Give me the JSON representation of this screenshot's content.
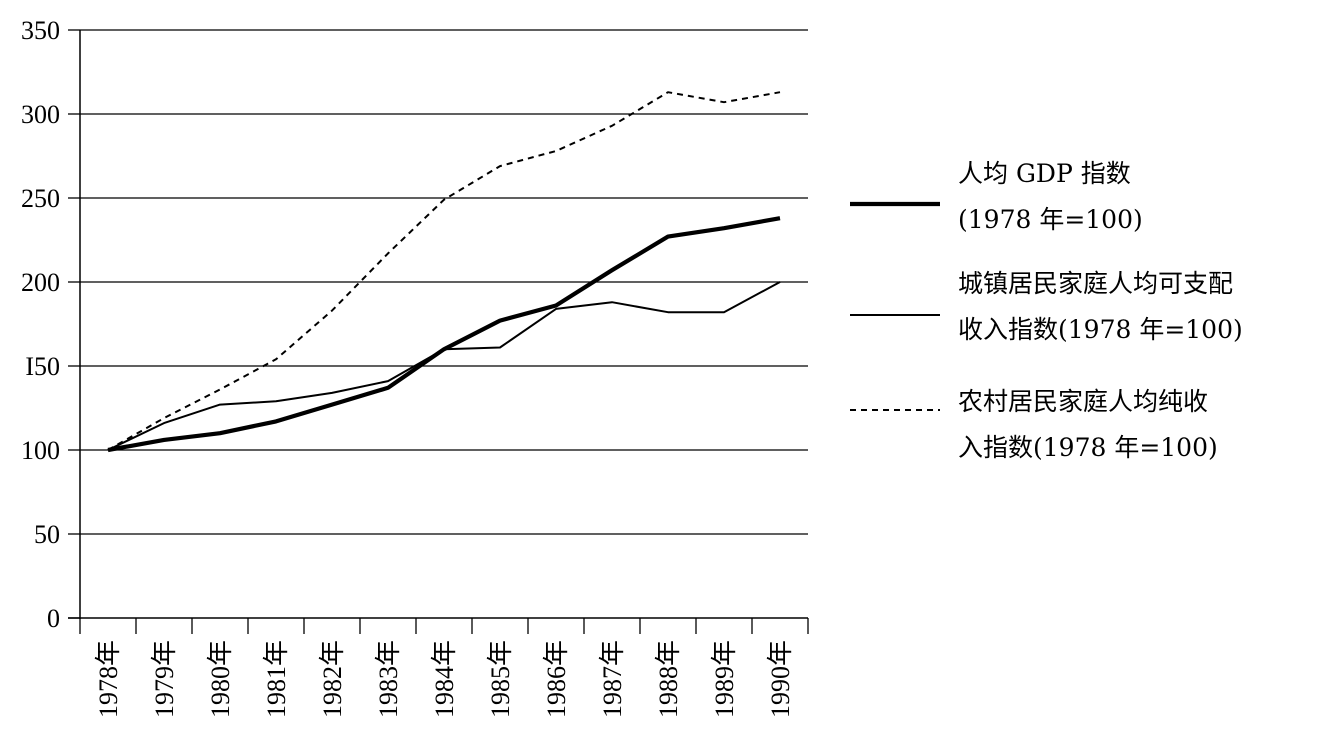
{
  "chart_data": {
    "type": "line",
    "title": "",
    "xlabel": "",
    "ylabel": "",
    "ylim": [
      0,
      350
    ],
    "yticks": [
      0,
      50,
      100,
      150,
      200,
      250,
      300,
      350
    ],
    "ytick_labels": [
      "0",
      "50",
      "100",
      "I50",
      "200",
      "250",
      "300",
      "350"
    ],
    "grid": "horizontal",
    "legend_position": "right",
    "categories": [
      "1978年",
      "1979年",
      "1980年",
      "1981年",
      "1982年",
      "1983年",
      "1984年",
      "1985年",
      "1986年",
      "1987年",
      "1988年",
      "1989年",
      "1990年"
    ],
    "series": [
      {
        "name_lines": [
          "人均 GDP 指数",
          "(1978 年=100)"
        ],
        "style": "thick",
        "values": [
          100,
          106,
          110,
          117,
          127,
          137,
          160,
          177,
          186,
          207,
          227,
          232,
          238
        ]
      },
      {
        "name_lines": [
          "城镇居民家庭人均可支配",
          "收入指数(1978 年=100)"
        ],
        "style": "thin",
        "values": [
          100,
          116,
          127,
          129,
          134,
          141,
          160,
          161,
          184,
          188,
          182,
          182,
          200
        ]
      },
      {
        "name_lines": [
          "农村居民家庭人均纯收",
          "入指数(1978 年=100)"
        ],
        "style": "dashed",
        "values": [
          100,
          119,
          136,
          154,
          183,
          217,
          249,
          269,
          278,
          293,
          313,
          307,
          313
        ]
      }
    ]
  }
}
